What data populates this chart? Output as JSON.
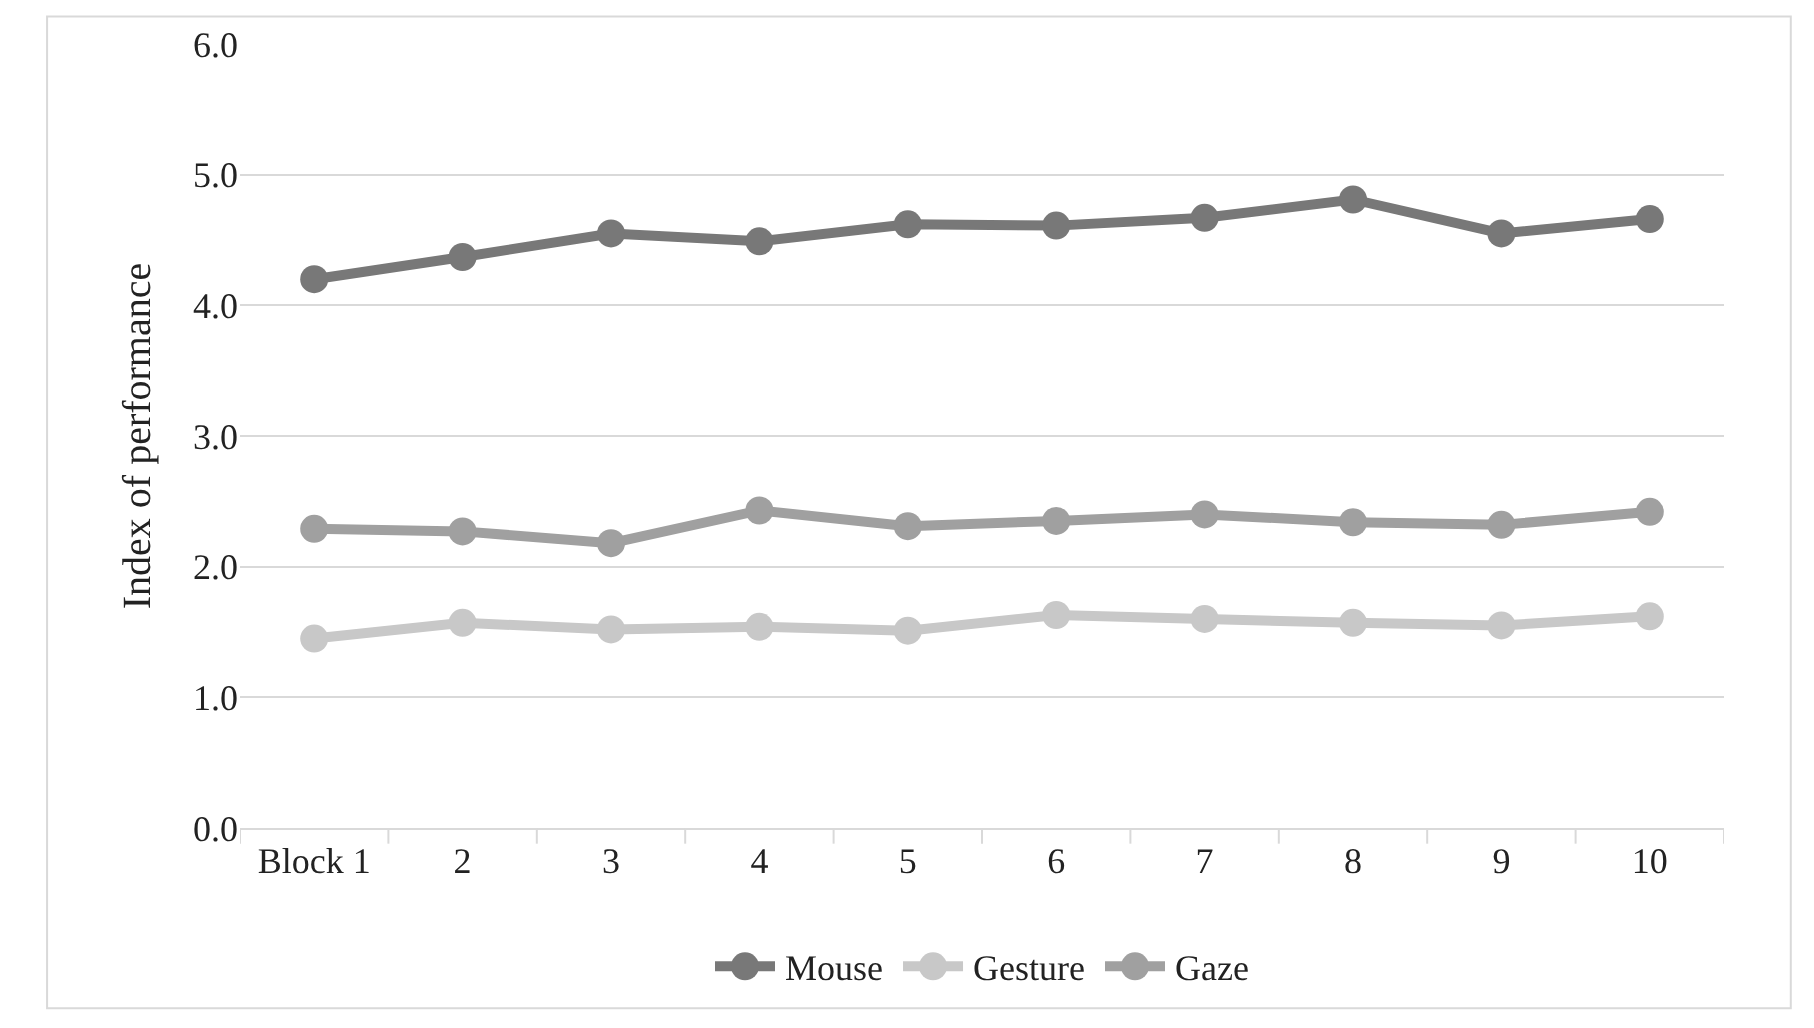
{
  "chart_data": {
    "type": "line",
    "ylabel": "Index of performance",
    "categories": [
      "Block 1",
      "2",
      "3",
      "4",
      "5",
      "6",
      "7",
      "8",
      "9",
      "10"
    ],
    "series": [
      {
        "name": "Mouse",
        "color": "#787878",
        "values": [
          4.2,
          4.37,
          4.55,
          4.49,
          4.62,
          4.61,
          4.67,
          4.81,
          4.55,
          4.66
        ]
      },
      {
        "name": "Gesture",
        "color": "#c8c8c8",
        "values": [
          1.45,
          1.57,
          1.52,
          1.54,
          1.51,
          1.63,
          1.6,
          1.57,
          1.55,
          1.62
        ]
      },
      {
        "name": "Gaze",
        "color": "#a0a0a0",
        "values": [
          2.29,
          2.27,
          2.18,
          2.43,
          2.31,
          2.35,
          2.4,
          2.34,
          2.32,
          2.42
        ]
      }
    ],
    "ylim": [
      0,
      6
    ],
    "yticks": [
      {
        "value": 0,
        "label": "0.0"
      },
      {
        "value": 1,
        "label": "1.0"
      },
      {
        "value": 2,
        "label": "2.0"
      },
      {
        "value": 3,
        "label": "3.0"
      },
      {
        "value": 4,
        "label": "4.0"
      },
      {
        "value": 5,
        "label": "5.0"
      },
      {
        "value": 6,
        "label": "6.0"
      }
    ],
    "grid": "y",
    "legend": "bottom",
    "marker": "circle",
    "line_style": "solid"
  }
}
